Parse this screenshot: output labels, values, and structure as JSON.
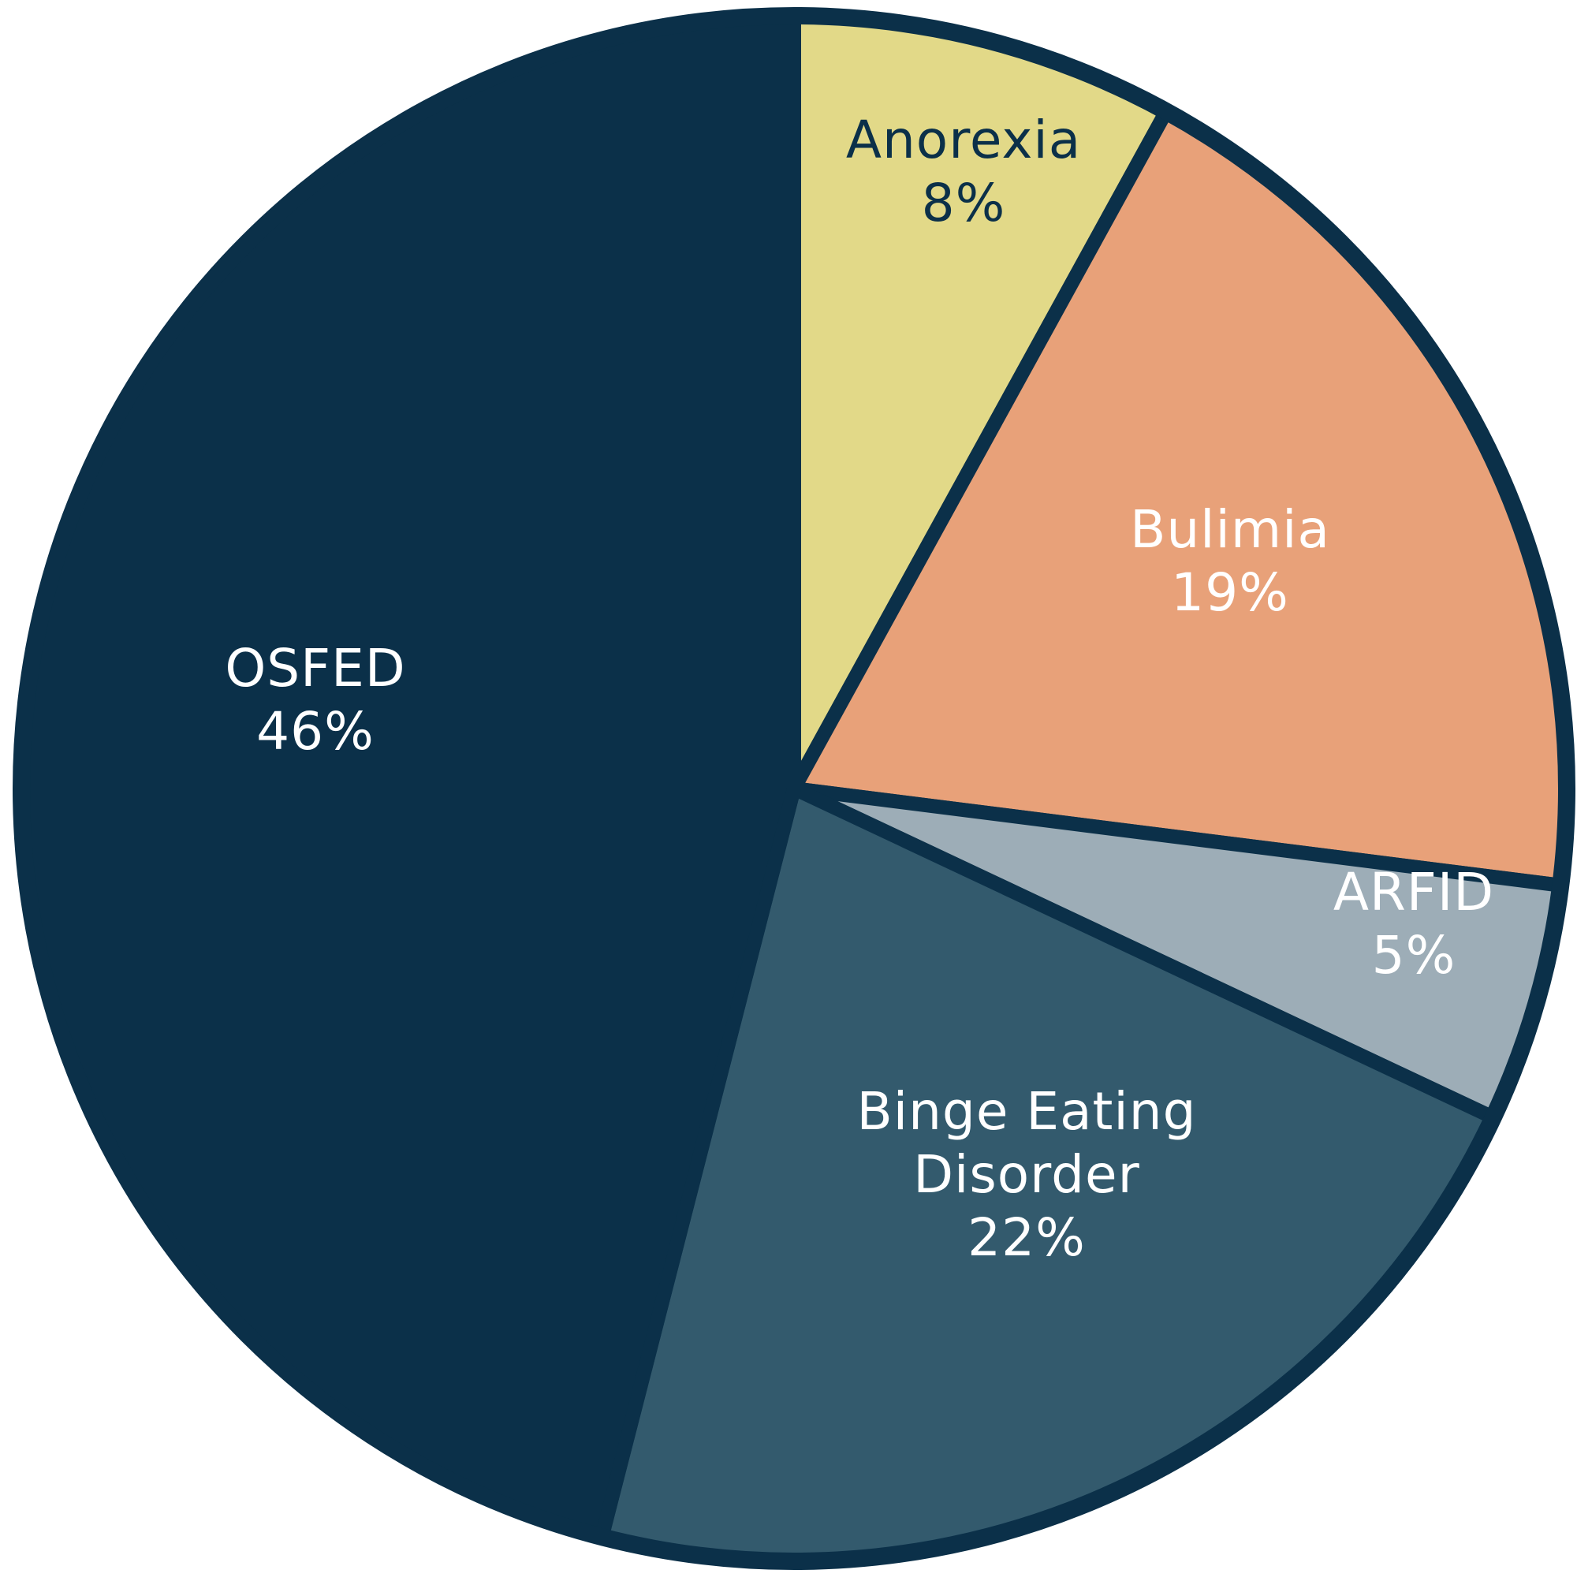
{
  "chart_data": {
    "type": "pie",
    "slices": [
      {
        "label": [
          "Anorexia"
        ],
        "percent_label": "8%",
        "value": 8,
        "color": "#e2d988",
        "text_color": "#0b3049"
      },
      {
        "label": [
          "Bulimia"
        ],
        "percent_label": "19%",
        "value": 19,
        "color": "#e8a179",
        "text_color": "#ffffff"
      },
      {
        "label": [
          "ARFID"
        ],
        "percent_label": "5%",
        "value": 5,
        "color": "#9dadb7",
        "text_color": "#ffffff"
      },
      {
        "label": [
          "Binge Eating",
          "Disorder"
        ],
        "percent_label": "22%",
        "value": 22,
        "color": "#335a6d",
        "text_color": "#ffffff"
      },
      {
        "label": [
          "OSFED"
        ],
        "percent_label": "46%",
        "value": 46,
        "color": "#0b3049",
        "text_color": "#ffffff"
      }
    ],
    "start_angle_deg": 0,
    "direction": "clockwise",
    "outline_color": "#0b3049",
    "legend": "none"
  }
}
